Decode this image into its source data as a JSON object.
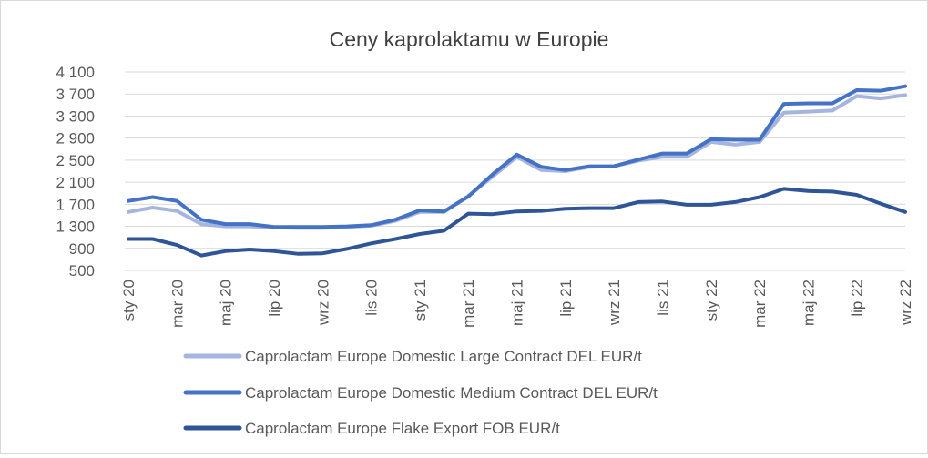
{
  "chart_data": {
    "type": "line",
    "title": "Ceny kaprolaktamu w Europie",
    "xlabel": "",
    "ylabel": "",
    "ylim": [
      500,
      4100
    ],
    "yticks": [
      "4 100",
      "3 700",
      "3 300",
      "2 900",
      "2 500",
      "2 100",
      "1 700",
      "1 300",
      "900",
      "500"
    ],
    "ytick_values": [
      4100,
      3700,
      3300,
      2900,
      2500,
      2100,
      1700,
      1300,
      900,
      500
    ],
    "grid": true,
    "legend_position": "bottom",
    "x": [
      "sty 20",
      "lut 20",
      "mar 20",
      "kwi 20",
      "maj 20",
      "cze 20",
      "lip 20",
      "sie 20",
      "wrz 20",
      "paź 20",
      "lis 20",
      "gru 20",
      "sty 21",
      "lut 21",
      "mar 21",
      "kwi 21",
      "maj 21",
      "cze 21",
      "lip 21",
      "sie 21",
      "wrz 21",
      "paź 21",
      "lis 21",
      "gru 21",
      "sty 22",
      "lut 22",
      "mar 22",
      "kwi 22",
      "maj 22",
      "cze 22",
      "lip 22",
      "sie 22",
      "wrz 22"
    ],
    "xtick_labels": [
      "sty 20",
      "mar 20",
      "maj 20",
      "lip 20",
      "wrz 20",
      "lis 20",
      "sty 21",
      "mar 21",
      "maj 21",
      "lip 21",
      "wrz 21",
      "lis 21",
      "sty 22",
      "mar 22",
      "maj 22",
      "lip 22",
      "wrz 22"
    ],
    "series": [
      {
        "name": "Caprolactam Europe Domestic Large Contract DEL EUR/t",
        "color": "#a5b5e0",
        "values": [
          1560,
          1640,
          1580,
          1340,
          1300,
          1300,
          1280,
          1270,
          1270,
          1290,
          1310,
          1400,
          1560,
          1560,
          1850,
          2200,
          2560,
          2320,
          2300,
          2380,
          2390,
          2490,
          2560,
          2560,
          2830,
          2780,
          2830,
          3360,
          3380,
          3400,
          3660,
          3620,
          3680
        ]
      },
      {
        "name": "Caprolactam Europe Domestic Medium Contract DEL EUR/t",
        "color": "#4472c4",
        "values": [
          1760,
          1830,
          1760,
          1420,
          1340,
          1340,
          1290,
          1290,
          1290,
          1300,
          1320,
          1420,
          1590,
          1570,
          1840,
          2240,
          2600,
          2380,
          2320,
          2390,
          2390,
          2510,
          2620,
          2620,
          2880,
          2870,
          2870,
          3520,
          3530,
          3530,
          3770,
          3760,
          3840
        ]
      },
      {
        "name": "Caprolactam Europe Flake Export FOB EUR/t",
        "color": "#2f5597",
        "values": [
          1070,
          1070,
          960,
          770,
          850,
          880,
          850,
          800,
          810,
          890,
          990,
          1070,
          1160,
          1220,
          1530,
          1520,
          1570,
          1580,
          1620,
          1630,
          1630,
          1740,
          1750,
          1690,
          1690,
          1740,
          1830,
          1980,
          1940,
          1930,
          1870,
          1710,
          1560
        ]
      }
    ]
  }
}
